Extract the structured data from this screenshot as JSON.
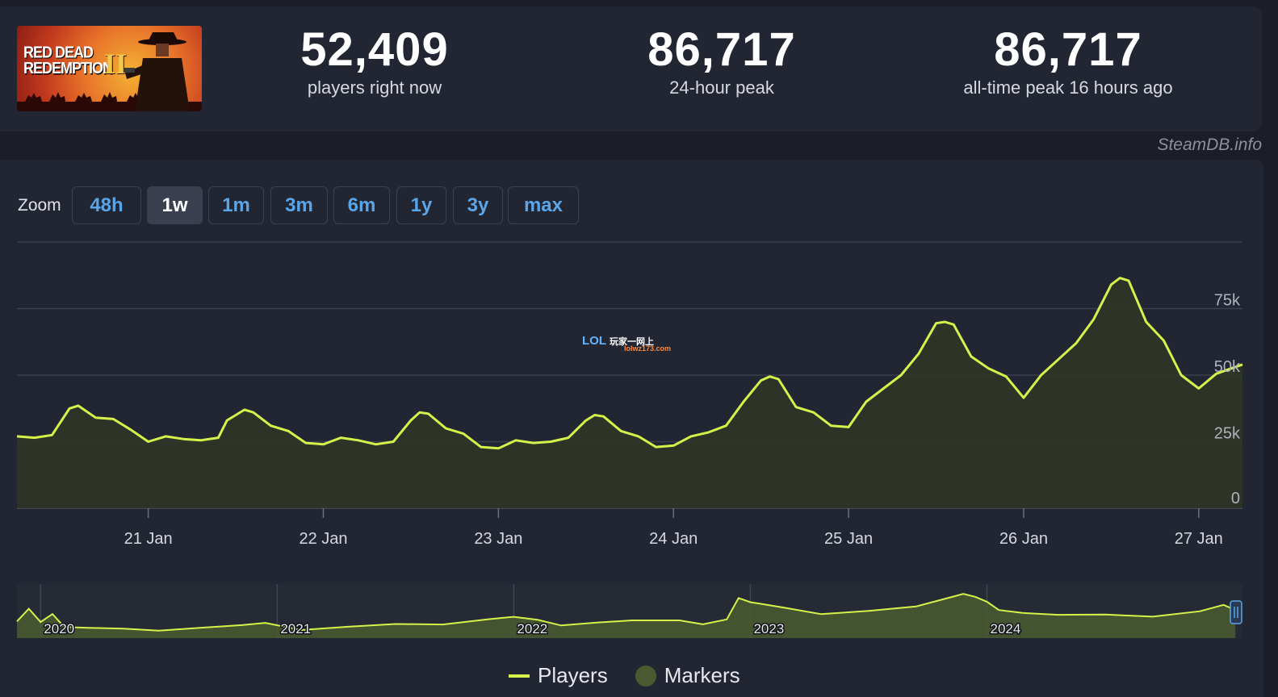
{
  "game": {
    "logo_line1": "RED DEAD",
    "logo_line2": "REDEMPTION",
    "logo_numeral": "II"
  },
  "stats": [
    {
      "value": "52,409",
      "label": "players right now"
    },
    {
      "value": "86,717",
      "label": "24-hour peak"
    },
    {
      "value": "86,717",
      "label": "all-time peak 16 hours ago"
    }
  ],
  "credit": "SteamDB.info",
  "zoom": {
    "label": "Zoom",
    "options": [
      "48h",
      "1w",
      "1m",
      "3m",
      "6m",
      "1y",
      "3y",
      "max"
    ],
    "active": "1w"
  },
  "watermark": {
    "logo": "LOL",
    "cn": "玩家一网上",
    "sub": "lolwz173.com"
  },
  "legend": {
    "players": "Players",
    "markers": "Markers"
  },
  "colors": {
    "line": "#d6f24a",
    "area": "#2f3526",
    "active_button": "#3a4050",
    "button_text": "#5aa5e8"
  },
  "chart_data": {
    "type": "line",
    "x_tick_labels": [
      "21 Jan",
      "22 Jan",
      "23 Jan",
      "24 Jan",
      "25 Jan",
      "26 Jan",
      "27 Jan"
    ],
    "y_tick_labels": [
      "0",
      "25k",
      "50k",
      "75k"
    ],
    "y_ticks": [
      0,
      25000,
      50000,
      75000
    ],
    "ylim": [
      0,
      100000
    ],
    "xlim": [
      20.25,
      27.25
    ],
    "grid": true,
    "series": [
      {
        "name": "Players",
        "x": [
          20.25,
          20.35,
          20.45,
          20.55,
          20.6,
          20.7,
          20.8,
          20.9,
          21.0,
          21.1,
          21.2,
          21.3,
          21.4,
          21.45,
          21.55,
          21.6,
          21.7,
          21.8,
          21.9,
          22.0,
          22.1,
          22.2,
          22.3,
          22.4,
          22.5,
          22.55,
          22.6,
          22.7,
          22.8,
          22.9,
          23.0,
          23.1,
          23.2,
          23.3,
          23.4,
          23.5,
          23.55,
          23.6,
          23.7,
          23.8,
          23.9,
          24.0,
          24.1,
          24.2,
          24.3,
          24.4,
          24.5,
          24.55,
          24.6,
          24.7,
          24.8,
          24.9,
          25.0,
          25.1,
          25.2,
          25.3,
          25.4,
          25.5,
          25.55,
          25.6,
          25.7,
          25.8,
          25.9,
          26.0,
          26.1,
          26.2,
          26.3,
          26.4,
          26.5,
          26.55,
          26.6,
          26.7,
          26.8,
          26.9,
          27.0,
          27.1,
          27.25
        ],
        "y": [
          27000,
          26500,
          27500,
          37500,
          38500,
          34000,
          33500,
          29500,
          25000,
          27000,
          26000,
          25500,
          26500,
          33000,
          37000,
          36000,
          31000,
          29000,
          24500,
          24000,
          26500,
          25500,
          24000,
          25000,
          33000,
          36000,
          35500,
          30000,
          28000,
          23000,
          22500,
          25500,
          24500,
          25000,
          26500,
          33000,
          35000,
          34500,
          29000,
          27000,
          23000,
          23500,
          27000,
          28500,
          31000,
          40000,
          48000,
          49500,
          48500,
          38000,
          36000,
          31000,
          30500,
          40000,
          45000,
          50000,
          58000,
          69500,
          70000,
          69000,
          57000,
          52500,
          49500,
          41500,
          50000,
          56000,
          62000,
          71000,
          84000,
          86500,
          85500,
          70000,
          63000,
          50000,
          45000,
          50500,
          54000
        ]
      }
    ],
    "overview": {
      "x_tick_labels": [
        "2020",
        "2021",
        "2022",
        "2023",
        "2024"
      ],
      "xlim": [
        2019.9,
        2025.08
      ],
      "ylim": [
        0,
        100000
      ],
      "x": [
        2019.9,
        2019.95,
        2020.0,
        2020.05,
        2020.1,
        2020.2,
        2020.35,
        2020.5,
        2020.7,
        2020.85,
        2020.95,
        2021.1,
        2021.3,
        2021.5,
        2021.7,
        2021.9,
        2022.0,
        2022.1,
        2022.2,
        2022.35,
        2022.5,
        2022.7,
        2022.8,
        2022.9,
        2022.95,
        2023.0,
        2023.05,
        2023.15,
        2023.3,
        2023.5,
        2023.7,
        2023.85,
        2023.9,
        2023.95,
        2024.0,
        2024.05,
        2024.15,
        2024.3,
        2024.5,
        2024.7,
        2024.9,
        2025.0,
        2025.05
      ],
      "y": [
        36000,
        58000,
        30000,
        43000,
        24000,
        20000,
        16000,
        18000,
        22000,
        24000,
        26000,
        18000,
        22000,
        25000,
        30000,
        38000,
        40000,
        32000,
        27000,
        30000,
        32000,
        38000,
        28000,
        35000,
        74000,
        72000,
        66000,
        56000,
        50000,
        54000,
        60000,
        76000,
        88000,
        80000,
        68000,
        58000,
        50000,
        44000,
        42000,
        44000,
        52000,
        62000,
        58000
      ]
    }
  }
}
